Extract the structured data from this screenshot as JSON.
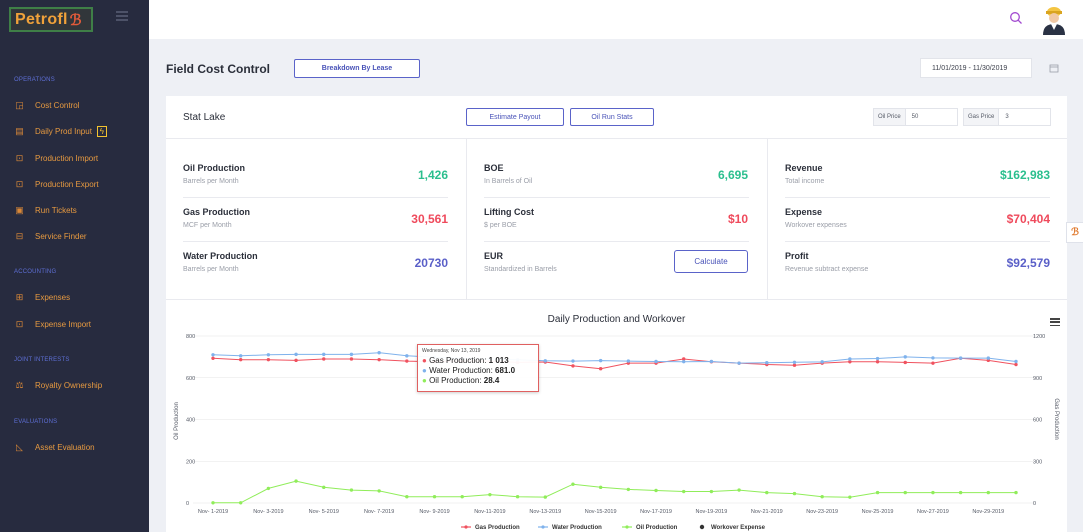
{
  "sidebar": {
    "logo": "Petrofl",
    "sections": [
      {
        "title": "OPERATIONS",
        "items": [
          {
            "label": "Cost Control",
            "icon": "chart-icon"
          },
          {
            "label": "Daily Prod Input",
            "icon": "document-icon",
            "badge": "flash"
          },
          {
            "label": "Production Import",
            "icon": "import-icon"
          },
          {
            "label": "Production Export",
            "icon": "export-icon"
          },
          {
            "label": "Run Tickets",
            "icon": "ticket-icon"
          },
          {
            "label": "Service Finder",
            "icon": "service-icon"
          }
        ]
      },
      {
        "title": "ACCOUNTING",
        "items": [
          {
            "label": "Expenses",
            "icon": "expense-icon"
          },
          {
            "label": "Expense Import",
            "icon": "expense-import-icon"
          }
        ]
      },
      {
        "title": "JOINT INTERESTS",
        "items": [
          {
            "label": "Royalty Ownership",
            "icon": "royalty-icon"
          }
        ]
      },
      {
        "title": "EVALUATIONS",
        "items": [
          {
            "label": "Asset Evaluation",
            "icon": "asset-chart-icon"
          }
        ]
      }
    ]
  },
  "header": {
    "title": "Field Cost Control",
    "breakdown_button": "Breakdown By Lease",
    "date_range": "11/01/2019 - 11/30/2019"
  },
  "card": {
    "lease_name": "Stat Lake",
    "estimate_payout_button": "Estimate Payout",
    "oil_run_stats_button": "Oil Run Stats",
    "oil_price_label": "Oil Price",
    "oil_price_value": "50",
    "gas_price_label": "Gas Price",
    "gas_price_value": "3",
    "calculate_button": "Calculate",
    "metrics": {
      "oil_production": {
        "title": "Oil Production",
        "sub": "Barrels per Month",
        "value": "1,426"
      },
      "gas_production": {
        "title": "Gas Production",
        "sub": "MCF per Month",
        "value": "30,561"
      },
      "water_production": {
        "title": "Water Production",
        "sub": "Barrels per Month",
        "value": "20730"
      },
      "boe": {
        "title": "BOE",
        "sub": "In Barrels of Oil",
        "value": "6,695"
      },
      "lifting_cost": {
        "title": "Lifting Cost",
        "sub": "$ per BOE",
        "value": "$10"
      },
      "eur": {
        "title": "EUR",
        "sub": "Standardized in Barrels"
      },
      "revenue": {
        "title": "Revenue",
        "sub": "Total income",
        "value": "$162,983"
      },
      "expense": {
        "title": "Expense",
        "sub": "Workover expenses",
        "value": "$70,404"
      },
      "profit": {
        "title": "Profit",
        "sub": "Revenue subtract expense",
        "value": "$92,579"
      }
    },
    "tooltip": {
      "date": "Wednesday, Nov 13, 2019",
      "gas": "Gas Production: ",
      "gas_val": "1 013",
      "water": "Water Production: ",
      "water_val": "681.0",
      "oil": "Oil Production: ",
      "oil_val": "28.4"
    }
  },
  "colors": {
    "gas": "#f0525f",
    "water": "#7fb2ec",
    "oil": "#90ed5a",
    "workover": "#333333",
    "green_value": "#2bbf8e",
    "red_value": "#ef4a5c",
    "purple_value": "#5a5fc8"
  },
  "chart_data": {
    "type": "line",
    "title": "Daily Production and Workover",
    "ylabel_left": "Oil Production",
    "ylabel_right": "Gas Production",
    "left_ticks": [
      "0",
      "200",
      "400",
      "600",
      "800"
    ],
    "right_ticks": [
      "0",
      "300",
      "600",
      "900",
      "1200"
    ],
    "ylim_left": [
      0,
      800
    ],
    "ylim_right": [
      0,
      1200
    ],
    "x_ticks": [
      "Nov- 1-2019",
      "Nov- 3-2019",
      "Nov- 5-2019",
      "Nov- 7-2019",
      "Nov- 9-2019",
      "Nov-11-2019",
      "Nov-13-2019",
      "Nov-15-2019",
      "Nov-17-2019",
      "Nov-19-2019",
      "Nov-21-2019",
      "Nov-23-2019",
      "Nov-25-2019",
      "Nov-27-2019",
      "Nov-29-2019"
    ],
    "x_count": 30,
    "series": [
      {
        "name": "Gas Production",
        "axis": "right",
        "values": [
          1040,
          1030,
          1030,
          1025,
          1035,
          1035,
          1030,
          1020,
          1015,
          1020,
          1020,
          1010,
          1013,
          985,
          965,
          1005,
          1005,
          1035,
          1015,
          1005,
          995,
          990,
          1005,
          1015,
          1015,
          1010,
          1005,
          1040,
          1025,
          995
        ]
      },
      {
        "name": "Water Production",
        "axis": "left",
        "values": [
          710,
          705,
          710,
          712,
          712,
          712,
          720,
          705,
          698,
          692,
          690,
          686,
          681,
          680,
          682,
          680,
          678,
          677,
          678,
          670,
          672,
          674,
          676,
          690,
          692,
          700,
          695,
          694,
          694,
          678
        ]
      },
      {
        "name": "Oil Production",
        "axis": "left",
        "values": [
          1,
          1,
          70,
          105,
          75,
          62,
          58,
          30,
          30,
          30,
          40,
          30,
          28.4,
          90,
          75,
          65,
          60,
          55,
          55,
          62,
          50,
          45,
          30,
          28,
          50,
          50,
          50,
          50,
          50,
          50
        ]
      }
    ],
    "legend": [
      "Gas Production",
      "Water Production",
      "Oil Production",
      "Workover Expense"
    ],
    "legend_placement": "bottom"
  }
}
